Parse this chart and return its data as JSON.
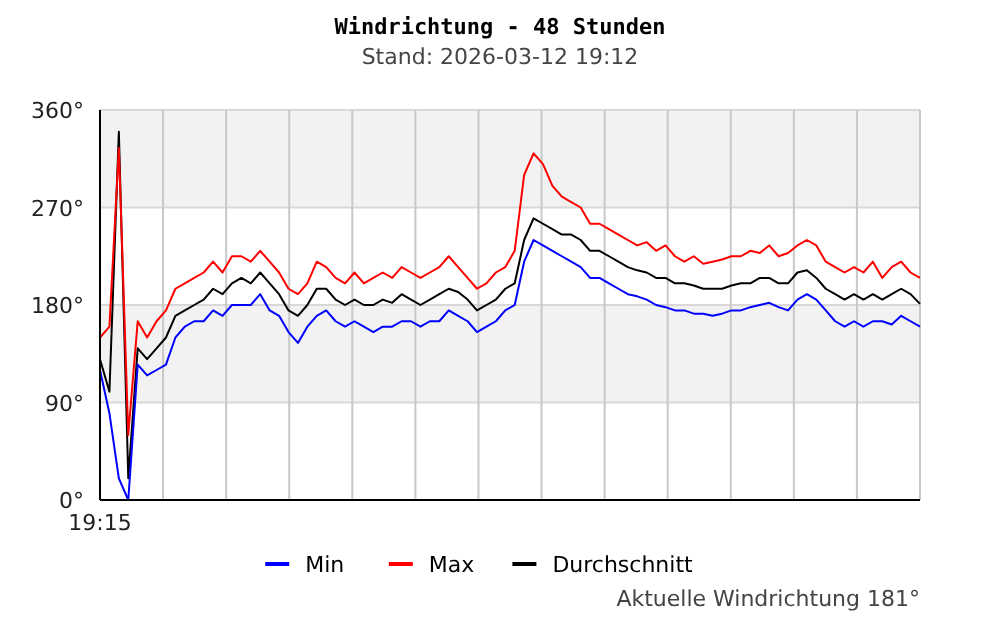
{
  "chart_data": {
    "type": "line",
    "title": "Windrichtung - 48 Stunden",
    "subtitle": "Stand: 2026-03-12 19:12",
    "annotations": [
      "Aktuelle Windrichtung 181°"
    ],
    "categories": [
      "19:15",
      null,
      null,
      null,
      null,
      null,
      null,
      null,
      null,
      null,
      null,
      null,
      null,
      null,
      null,
      null,
      null,
      null,
      null,
      null,
      null,
      null,
      null,
      null,
      null,
      null,
      null,
      null,
      null,
      null,
      null,
      null,
      null,
      null,
      null,
      null,
      null,
      null,
      null,
      null,
      null,
      null,
      null,
      null,
      null,
      null,
      null,
      null,
      null,
      null,
      null,
      null,
      null,
      null,
      null,
      null,
      null,
      null,
      null,
      null,
      null,
      null,
      null,
      null,
      null,
      null,
      null,
      null,
      null,
      null,
      null,
      null,
      null,
      null,
      null,
      null,
      null,
      null,
      null,
      null,
      null,
      null,
      null,
      null,
      null,
      null,
      null,
      null
    ],
    "series": [
      {
        "name": "Min",
        "color": "#0000ff",
        "values": [
          120,
          80,
          20,
          0,
          125,
          115,
          120,
          125,
          150,
          160,
          165,
          165,
          175,
          170,
          180,
          180,
          180,
          190,
          175,
          170,
          155,
          145,
          160,
          170,
          175,
          165,
          160,
          165,
          160,
          155,
          160,
          160,
          165,
          165,
          160,
          165,
          165,
          175,
          170,
          165,
          155,
          160,
          165,
          175,
          180,
          220,
          240,
          235,
          230,
          225,
          220,
          215,
          205,
          205,
          200,
          195,
          190,
          188,
          185,
          180,
          178,
          175,
          175,
          172,
          172,
          170,
          172,
          175,
          175,
          178,
          180,
          182,
          178,
          175,
          185,
          190,
          185,
          175,
          165,
          160,
          165,
          160,
          165,
          165,
          162,
          170,
          165,
          160
        ]
      },
      {
        "name": "Max",
        "color": "#ff0000",
        "values": [
          150,
          160,
          325,
          60,
          165,
          150,
          165,
          175,
          195,
          200,
          205,
          210,
          220,
          210,
          225,
          225,
          220,
          230,
          220,
          210,
          195,
          190,
          200,
          220,
          215,
          205,
          200,
          210,
          200,
          205,
          210,
          205,
          215,
          210,
          205,
          210,
          215,
          225,
          215,
          205,
          195,
          200,
          210,
          215,
          230,
          300,
          320,
          310,
          290,
          280,
          275,
          270,
          255,
          255,
          250,
          245,
          240,
          235,
          238,
          230,
          235,
          225,
          220,
          225,
          218,
          220,
          222,
          225,
          225,
          230,
          228,
          235,
          225,
          228,
          235,
          240,
          235,
          220,
          215,
          210,
          215,
          210,
          220,
          205,
          215,
          220,
          210,
          205
        ]
      },
      {
        "name": "Durchschnitt",
        "color": "#000000",
        "values": [
          130,
          100,
          340,
          20,
          140,
          130,
          140,
          150,
          170,
          175,
          180,
          185,
          195,
          190,
          200,
          205,
          200,
          210,
          200,
          190,
          175,
          170,
          180,
          195,
          195,
          185,
          180,
          185,
          180,
          180,
          185,
          182,
          190,
          185,
          180,
          185,
          190,
          195,
          192,
          185,
          175,
          180,
          185,
          195,
          200,
          240,
          260,
          255,
          250,
          245,
          245,
          240,
          230,
          230,
          225,
          220,
          215,
          212,
          210,
          205,
          205,
          200,
          200,
          198,
          195,
          195,
          195,
          198,
          200,
          200,
          205,
          205,
          200,
          200,
          210,
          212,
          205,
          195,
          190,
          185,
          190,
          185,
          190,
          185,
          190,
          195,
          190,
          181
        ]
      }
    ],
    "ylim": [
      0,
      360
    ],
    "yticks": [
      {
        "value": 0,
        "label": "0°"
      },
      {
        "value": 90,
        "label": "90°"
      },
      {
        "value": 180,
        "label": "180°"
      },
      {
        "value": 270,
        "label": "270°"
      },
      {
        "value": 360,
        "label": "360°"
      }
    ],
    "bands": [
      {
        "axis": "y",
        "from": 90,
        "to": 180,
        "color": "#f2f2f2"
      },
      {
        "axis": "y",
        "from": 270,
        "to": 360,
        "color": "#f2f2f2"
      }
    ],
    "grid": true,
    "legend": "bottom",
    "line_style": "solid",
    "marker": "none"
  }
}
